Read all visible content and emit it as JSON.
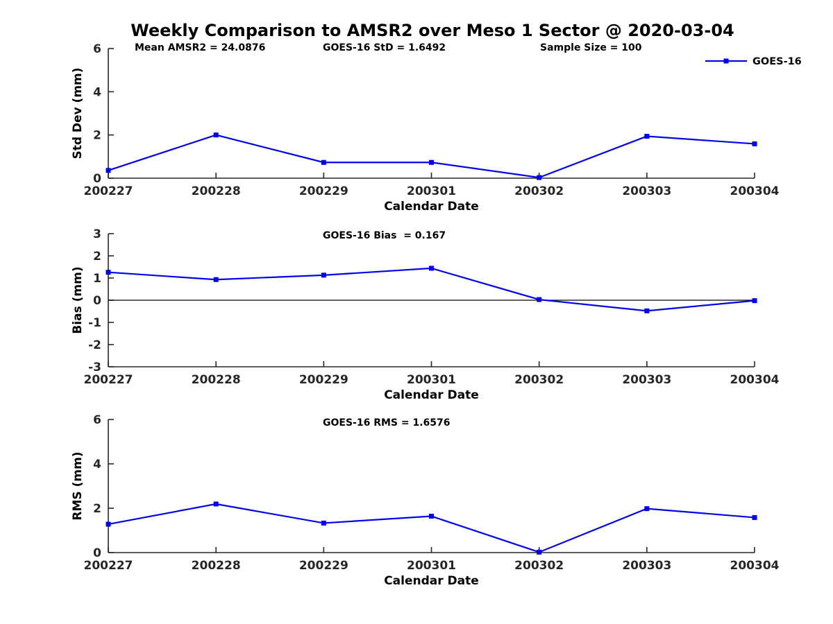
{
  "figure": {
    "title": "Weekly Comparison to AMSR2 over Meso 1 Sector @ 2020-03-04",
    "legend": {
      "label": "GOES-16"
    },
    "colors": {
      "line": "#0000EE",
      "marker": "#0000EE",
      "axis": "#262626",
      "tick_label": "#262626",
      "text": "#000000",
      "zero_line": "#000000",
      "background": "#FFFFFF"
    }
  },
  "chart_data": [
    {
      "type": "line",
      "series_name": "GOES-16",
      "header_texts": [
        "Mean AMSR2 = 24.0876",
        "GOES-16 StD = 1.6492",
        "Sample Size = 100"
      ],
      "categories": [
        "200227",
        "200228",
        "200229",
        "200301",
        "200302",
        "200303",
        "200304"
      ],
      "values": [
        0.36,
        2.0,
        0.73,
        0.73,
        0.03,
        1.94,
        1.59
      ],
      "xlabel": "Calendar Date",
      "ylabel": "Std Dev (mm)",
      "ylim": [
        0,
        6
      ],
      "yticks": [
        0,
        2,
        4,
        6
      ],
      "zero_line": false,
      "grid": false,
      "legend": true,
      "legend_position": "top-right"
    },
    {
      "type": "line",
      "series_name": "GOES-16",
      "header_texts": [
        "GOES-16 Bias  = 0.167"
      ],
      "categories": [
        "200227",
        "200228",
        "200229",
        "200301",
        "200302",
        "200303",
        "200304"
      ],
      "values": [
        1.26,
        0.93,
        1.13,
        1.44,
        0.03,
        -0.48,
        -0.02
      ],
      "xlabel": "Calendar Date",
      "ylabel": "Bias (mm)",
      "ylim": [
        -3,
        3
      ],
      "yticks": [
        -3,
        -2,
        -1,
        0,
        1,
        2,
        3
      ],
      "zero_line": true,
      "grid": false,
      "legend": false
    },
    {
      "type": "line",
      "series_name": "GOES-16",
      "header_texts": [
        "GOES-16 RMS = 1.6576"
      ],
      "categories": [
        "200227",
        "200228",
        "200229",
        "200301",
        "200302",
        "200303",
        "200304"
      ],
      "values": [
        1.28,
        2.19,
        1.33,
        1.64,
        0.02,
        1.98,
        1.58
      ],
      "xlabel": "Calendar Date",
      "ylabel": "RMS (mm)",
      "ylim": [
        0,
        6
      ],
      "yticks": [
        0,
        2,
        4,
        6
      ],
      "zero_line": false,
      "grid": false,
      "legend": false
    }
  ]
}
